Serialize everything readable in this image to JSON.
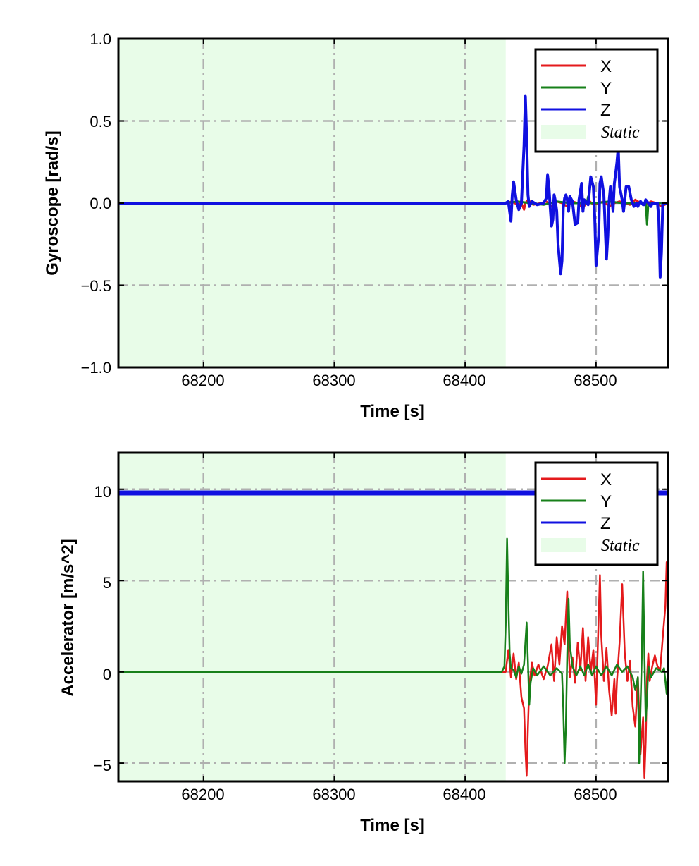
{
  "colors": {
    "x": "#e41a1c",
    "y": "#17801a",
    "z": "#1010e0",
    "static": "#e8fce8",
    "grid": "#b0b0b0"
  },
  "chart_data": [
    {
      "type": "line",
      "xlabel": "Time [s]",
      "ylabel": "Gyroscope [rad/s]",
      "xlim": [
        68135,
        68555
      ],
      "ylim": [
        -1.0,
        1.0
      ],
      "xticks": [
        68200,
        68300,
        68400,
        68500
      ],
      "xtick_labels": [
        "68200",
        "68300",
        "68400",
        "68500"
      ],
      "yticks": [
        -1.0,
        -0.5,
        0.0,
        0.5,
        1.0
      ],
      "ytick_labels": [
        "−1.0",
        "−0.5",
        "0.0",
        "0.5",
        "1.0"
      ],
      "grid": true,
      "legend_position": "top-right",
      "static_region": {
        "label": "Static",
        "x_start": 68135,
        "x_end": 68431
      },
      "series": [
        {
          "name": "X",
          "color_key": "x",
          "line_width": 3,
          "x": [
            68135,
            68431,
            68436,
            68440,
            68443,
            68445,
            68446,
            68448,
            68452,
            68458,
            68462,
            68466,
            68470,
            68474,
            68478,
            68482,
            68486,
            68490,
            68494,
            68498,
            68502,
            68506,
            68510,
            68514,
            68518,
            68522,
            68526,
            68530,
            68534,
            68538,
            68542,
            68546,
            68550,
            68555
          ],
          "y": [
            0,
            0,
            0.01,
            -0.01,
            0,
            -0.04,
            0,
            0.02,
            -0.01,
            0,
            0.01,
            -0.02,
            0.01,
            0,
            -0.02,
            0.01,
            0,
            -0.03,
            0.02,
            -0.01,
            0,
            0.01,
            -0.02,
            0,
            0.01,
            0,
            -0.01,
            0.02,
            0,
            -0.01,
            0.01,
            0,
            -0.02,
            0
          ]
        },
        {
          "name": "Y",
          "color_key": "y",
          "line_width": 3,
          "x": [
            68135,
            68431,
            68440,
            68450,
            68460,
            68470,
            68480,
            68490,
            68493,
            68494,
            68495,
            68500,
            68510,
            68520,
            68530,
            68538,
            68539,
            68540,
            68541,
            68550,
            68555
          ],
          "y": [
            0,
            0,
            0.01,
            0,
            -0.01,
            0.01,
            0,
            0,
            0,
            0.04,
            0,
            0,
            0.01,
            0,
            0,
            0,
            -0.13,
            0,
            0,
            0,
            0
          ]
        },
        {
          "name": "Z",
          "color_key": "z",
          "line_width": 4,
          "x": [
            68135,
            68431,
            68433,
            68435,
            68436,
            68437,
            68439,
            68441,
            68443,
            68445,
            68446,
            68447,
            68448,
            68449,
            68451,
            68455,
            68460,
            68462,
            68463,
            68464,
            68465,
            68466,
            68467,
            68468,
            68469,
            68470,
            68471,
            68473,
            68474,
            68475,
            68476,
            68477,
            68478,
            68479,
            68480,
            68482,
            68484,
            68486,
            68487,
            68489,
            68490,
            68491,
            68493,
            68494,
            68496,
            68498,
            68499,
            68500,
            68502,
            68503,
            68504,
            68506,
            68507,
            68508,
            68509,
            68510,
            68511,
            68512,
            68513,
            68514,
            68515,
            68516,
            68517,
            68518,
            68520,
            68521,
            68522,
            68523,
            68525,
            68527,
            68529,
            68531,
            68532,
            68533,
            68534,
            68535,
            68536,
            68537,
            68538,
            68540,
            68542,
            68543,
            68544,
            68546,
            68547,
            68548,
            68549,
            68550,
            68551,
            68552,
            68553,
            68554,
            68555
          ],
          "y": [
            0,
            0,
            0.01,
            -0.11,
            0.05,
            0.13,
            0.02,
            -0.04,
            0,
            0.35,
            0.65,
            0.4,
            0.05,
            -0.02,
            0.01,
            -0.01,
            0,
            0.03,
            0.17,
            0.1,
            -0.03,
            -0.14,
            -0.1,
            0.05,
            0.01,
            -0.05,
            -0.25,
            -0.43,
            -0.35,
            -0.03,
            0.03,
            0.05,
            0.02,
            -0.05,
            0.04,
            0.01,
            -0.13,
            -0.12,
            0.02,
            0.12,
            -0.05,
            0.02,
            0,
            -0.01,
            0.16,
            0.1,
            -0.08,
            -0.38,
            -0.2,
            0.12,
            0.16,
            0.05,
            -0.15,
            -0.34,
            -0.2,
            0.01,
            0.1,
            0.04,
            -0.05,
            0.12,
            0.18,
            0.25,
            0.34,
            0.1,
            0.02,
            -0.05,
            0.02,
            0.1,
            0.1,
            0.02,
            -0.02,
            0,
            -0.02,
            0,
            0.01,
            0,
            -0.01,
            -0.01,
            0.02,
            0,
            -0.02,
            0,
            0,
            0,
            0,
            -0.1,
            -0.45,
            -0.3,
            0,
            0,
            0,
            0,
            0
          ]
        }
      ]
    },
    {
      "type": "line",
      "xlabel": "Time [s]",
      "ylabel": "Accelerator [m/s^2]",
      "xlim": [
        68135,
        68555
      ],
      "ylim": [
        -6,
        12
      ],
      "xticks": [
        68200,
        68300,
        68400,
        68500
      ],
      "xtick_labels": [
        "68200",
        "68300",
        "68400",
        "68500"
      ],
      "yticks": [
        -5,
        0,
        5,
        10
      ],
      "ytick_labels": [
        "−5",
        "0",
        "5",
        "10"
      ],
      "grid": true,
      "legend_position": "top-right",
      "static_region": {
        "label": "Static",
        "x_start": 68135,
        "x_end": 68431
      },
      "series": [
        {
          "name": "X",
          "color_key": "x",
          "line_width": 2.5,
          "x": [
            68135,
            68431,
            68433,
            68435,
            68437,
            68439,
            68441,
            68443,
            68445,
            68446,
            68447,
            68448,
            68449,
            68451,
            68453,
            68456,
            68460,
            68463,
            68466,
            68468,
            68470,
            68472,
            68474,
            68476,
            68477,
            68478,
            68479,
            68480,
            68482,
            68484,
            68486,
            68488,
            68490,
            68492,
            68494,
            68496,
            68498,
            68500,
            68502,
            68503,
            68504,
            68506,
            68508,
            68510,
            68512,
            68514,
            68515,
            68516,
            68518,
            68520,
            68522,
            68524,
            68526,
            68528,
            68530,
            68532,
            68534,
            68536,
            68537,
            68538,
            68539,
            68540,
            68541,
            68543,
            68545,
            68547,
            68549,
            68551,
            68553,
            68554,
            68555
          ],
          "y": [
            0,
            0,
            1.2,
            -0.3,
            1.0,
            -0.4,
            0.5,
            -1.4,
            -2.0,
            -4.2,
            -5.7,
            -3.0,
            -0.8,
            0.5,
            -0.2,
            0.4,
            -0.4,
            0.3,
            1.5,
            -0.5,
            1.9,
            0.4,
            2.5,
            1.5,
            3.0,
            4.4,
            1.5,
            -0.3,
            0.8,
            -0.6,
            1.6,
            0.1,
            2.4,
            -0.5,
            1.9,
            0.0,
            1.2,
            -1.8,
            3.0,
            5.3,
            2.0,
            -0.5,
            1.3,
            -1.0,
            -2.4,
            -0.4,
            -2.3,
            -0.5,
            1.6,
            4.8,
            1.0,
            -0.5,
            0.6,
            -1.9,
            -3.0,
            -0.3,
            -4.5,
            -2.5,
            -5.8,
            -3.8,
            -0.3,
            1.0,
            -0.5,
            0.3,
            0.9,
            0.3,
            0.1,
            1.9,
            3.6,
            6.0,
            5.0
          ]
        },
        {
          "name": "Y",
          "color_key": "y",
          "line_width": 2.5,
          "x": [
            68135,
            68428,
            68430,
            68431,
            68432,
            68433,
            68434,
            68435,
            68437,
            68439,
            68441,
            68443,
            68445,
            68447,
            68448,
            68449,
            68450,
            68452,
            68455,
            68460,
            68465,
            68470,
            68474,
            68475,
            68476,
            68477,
            68478,
            68479,
            68480,
            68482,
            68485,
            68488,
            68491,
            68494,
            68497,
            68500,
            68504,
            68508,
            68512,
            68516,
            68520,
            68524,
            68528,
            68530,
            68532,
            68533,
            68534,
            68535,
            68536,
            68537,
            68538,
            68539,
            68540,
            68542,
            68546,
            68550,
            68552,
            68553,
            68554,
            68555
          ],
          "y": [
            0,
            0,
            0.3,
            2.6,
            7.3,
            4.0,
            1.0,
            0.2,
            0.1,
            -0.3,
            0.3,
            -0.1,
            0.4,
            2.7,
            0.5,
            -1.8,
            -0.6,
            0.2,
            -0.2,
            0.3,
            -0.2,
            0.2,
            -0.1,
            -2.0,
            -5.0,
            -3.0,
            1.0,
            4.0,
            1.5,
            0.3,
            -0.2,
            0.3,
            -0.2,
            0.4,
            -0.2,
            0.3,
            -0.2,
            0.3,
            -0.2,
            0.4,
            0.0,
            0.3,
            -0.3,
            -1.0,
            -0.3,
            -5.0,
            -2.0,
            1.0,
            5.5,
            1.0,
            -2.7,
            -1.5,
            0.3,
            -0.3,
            0.2,
            0.0,
            0.2,
            -0.5,
            -1.2,
            0.2
          ]
        },
        {
          "name": "Z",
          "color_key": "z",
          "line_width": 7,
          "x": [
            68135,
            68431,
            68555
          ],
          "y": [
            9.8,
            9.8,
            9.8
          ]
        }
      ]
    }
  ]
}
